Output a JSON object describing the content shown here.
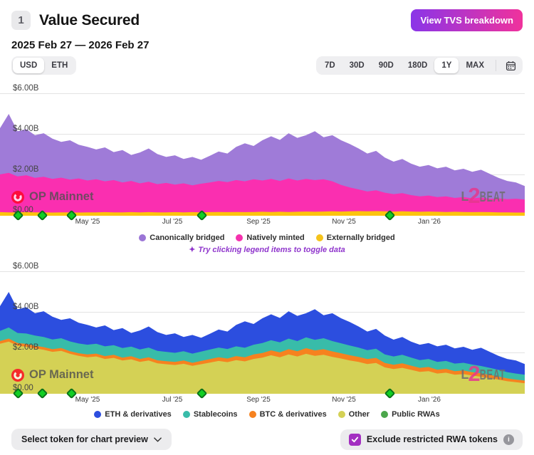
{
  "header": {
    "badge": "1",
    "title": "Value Secured",
    "breakdown_button": "View TVS breakdown"
  },
  "date_range": "2025 Feb 27 — 2026 Feb 27",
  "unit_toggle": {
    "options": [
      "USD",
      "ETH"
    ],
    "selected": "USD"
  },
  "range_selector": {
    "options": [
      "7D",
      "30D",
      "90D",
      "180D",
      "1Y",
      "MAX"
    ],
    "selected": "1Y"
  },
  "watermarks": {
    "chain": "OP Mainnet",
    "brand_l": "L",
    "brand_2": "2",
    "brand_beat": "BEAT"
  },
  "hint": {
    "icon": "✦",
    "text": "Try clicking legend items to toggle data"
  },
  "footer": {
    "token_select_label": "Select token for chart preview",
    "exclude_checkbox_label": "Exclude restricted RWA tokens",
    "exclude_checked": true
  },
  "colors": {
    "accent_gradient_start": "#8A35E8",
    "accent_gradient_end": "#F0329C",
    "checkbox_purple": "#A32FC1",
    "gridline": "#E3E3E3",
    "milestone_fill": "#11CE24",
    "milestone_border": "#0B7418",
    "op_red": "#FF0420",
    "l2beat_pink": "#E6388F"
  },
  "chart_data": [
    {
      "type": "area",
      "stacked": true,
      "name": "value-secured-by-bridge-type",
      "unit": "USD",
      "ylim": [
        0,
        6
      ],
      "x_range": [
        "2025 Feb 27",
        "2026 Feb 27"
      ],
      "y_ticks": [
        {
          "label": "$6.00B",
          "value": 6
        },
        {
          "label": "$4.00B",
          "value": 4
        },
        {
          "label": "$2.00B",
          "value": 2
        },
        {
          "label": "$0.00",
          "value": 0
        }
      ],
      "x_ticks": [
        {
          "label": "May '25",
          "f": 0.167
        },
        {
          "label": "Jul '25",
          "f": 0.329
        },
        {
          "label": "Sep '25",
          "f": 0.493
        },
        {
          "label": "Nov '25",
          "f": 0.655
        },
        {
          "label": "Jan '26",
          "f": 0.818
        }
      ],
      "milestones_f": [
        0.034,
        0.081,
        0.136,
        0.384,
        0.743
      ],
      "layers": [
        {
          "name": "Canonically bridged",
          "color": "#9F7BD8",
          "tops": [
            4.3,
            5.0,
            4.15,
            4.25,
            3.95,
            4.05,
            3.78,
            3.62,
            3.7,
            3.48,
            3.38,
            3.25,
            3.35,
            3.12,
            3.22,
            2.98,
            3.1,
            3.3,
            3.02,
            2.88,
            2.96,
            2.78,
            2.88,
            2.74,
            2.94,
            3.15,
            3.05,
            3.38,
            3.55,
            3.42,
            3.7,
            3.9,
            3.72,
            4.05,
            3.82,
            3.95,
            4.15,
            3.85,
            3.95,
            3.7,
            3.52,
            3.3,
            3.05,
            3.18,
            2.85,
            2.65,
            2.78,
            2.55,
            2.4,
            2.48,
            2.32,
            2.4,
            2.22,
            2.3,
            2.15,
            2.25,
            2.05,
            1.85,
            1.7,
            1.62,
            1.45
          ]
        },
        {
          "name": "Natively minted",
          "color": "#FA2FB0",
          "tops": [
            2.02,
            2.1,
            1.92,
            1.98,
            1.85,
            1.9,
            1.8,
            1.86,
            1.76,
            1.82,
            1.72,
            1.78,
            1.68,
            1.74,
            1.62,
            1.7,
            1.58,
            1.66,
            1.54,
            1.6,
            1.52,
            1.58,
            1.48,
            1.56,
            1.62,
            1.7,
            1.64,
            1.74,
            1.68,
            1.78,
            1.72,
            1.8,
            1.7,
            1.82,
            1.72,
            1.8,
            1.74,
            1.78,
            1.68,
            1.5,
            1.38,
            1.28,
            1.18,
            1.24,
            1.12,
            1.05,
            1.1,
            1.0,
            0.94,
            0.98,
            0.9,
            0.94,
            0.86,
            0.9,
            0.84,
            0.88,
            0.82,
            0.84,
            0.8,
            0.82,
            0.78
          ]
        },
        {
          "name": "Externally bridged",
          "color": "#FCC40E",
          "tops": [
            0.16,
            0.15,
            0.15,
            0.16,
            0.15,
            0.15,
            0.14,
            0.15,
            0.15,
            0.14,
            0.15,
            0.15,
            0.16,
            0.15,
            0.15,
            0.16,
            0.15,
            0.16,
            0.15,
            0.15,
            0.16,
            0.15,
            0.16,
            0.15,
            0.16,
            0.17,
            0.16,
            0.17,
            0.16,
            0.17,
            0.18,
            0.17,
            0.18,
            0.17,
            0.18,
            0.19,
            0.18,
            0.19,
            0.2,
            0.19,
            0.2,
            0.21,
            0.2,
            0.21,
            0.2,
            0.19,
            0.2,
            0.19,
            0.18,
            0.19,
            0.18,
            0.17,
            0.18,
            0.17,
            0.16,
            0.17,
            0.16,
            0.15,
            0.15,
            0.14,
            0.14
          ]
        }
      ],
      "legend": [
        {
          "label": "Canonically bridged",
          "color": "#9B75D6"
        },
        {
          "label": "Natively minted",
          "color": "#F531AE"
        },
        {
          "label": "Externally bridged",
          "color": "#F5C31B"
        }
      ]
    },
    {
      "type": "area",
      "stacked": true,
      "name": "value-secured-by-token-category",
      "unit": "USD",
      "ylim": [
        0,
        6
      ],
      "x_range": [
        "2025 Feb 27",
        "2026 Feb 27"
      ],
      "y_ticks": [
        {
          "label": "$6.00B",
          "value": 6
        },
        {
          "label": "$4.00B",
          "value": 4
        },
        {
          "label": "$2.00B",
          "value": 2
        },
        {
          "label": "$0.00",
          "value": 0
        }
      ],
      "x_ticks": [
        {
          "label": "May '25",
          "f": 0.167
        },
        {
          "label": "Jul '25",
          "f": 0.329
        },
        {
          "label": "Sep '25",
          "f": 0.493
        },
        {
          "label": "Nov '25",
          "f": 0.655
        },
        {
          "label": "Jan '26",
          "f": 0.818
        }
      ],
      "milestones_f": [
        0.034,
        0.081,
        0.136,
        0.384,
        0.743
      ],
      "layers": [
        {
          "name": "ETH & derivatives",
          "color": "#2C4EDF",
          "tops": [
            4.3,
            5.0,
            4.15,
            4.25,
            3.95,
            4.05,
            3.78,
            3.62,
            3.7,
            3.48,
            3.38,
            3.25,
            3.35,
            3.12,
            3.22,
            2.98,
            3.1,
            3.3,
            3.02,
            2.88,
            2.96,
            2.78,
            2.88,
            2.74,
            2.94,
            3.15,
            3.05,
            3.38,
            3.55,
            3.42,
            3.7,
            3.9,
            3.72,
            4.05,
            3.82,
            3.95,
            4.15,
            3.85,
            3.95,
            3.7,
            3.52,
            3.3,
            3.05,
            3.18,
            2.85,
            2.65,
            2.78,
            2.55,
            2.4,
            2.48,
            2.32,
            2.4,
            2.22,
            2.3,
            2.15,
            2.25,
            2.05,
            1.85,
            1.7,
            1.62,
            1.45
          ]
        },
        {
          "name": "Stablecoins",
          "color": "#38BCA9",
          "tops": [
            3.08,
            3.25,
            2.98,
            2.95,
            2.85,
            2.78,
            2.66,
            2.72,
            2.56,
            2.46,
            2.4,
            2.45,
            2.32,
            2.38,
            2.24,
            2.31,
            2.17,
            2.26,
            2.1,
            2.05,
            2.0,
            2.08,
            1.96,
            2.06,
            2.16,
            2.26,
            2.19,
            2.32,
            2.25,
            2.4,
            2.48,
            2.62,
            2.52,
            2.7,
            2.58,
            2.76,
            2.64,
            2.72,
            2.58,
            2.47,
            2.36,
            2.26,
            2.13,
            2.2,
            1.92,
            1.82,
            1.9,
            1.77,
            1.64,
            1.7,
            1.55,
            1.6,
            1.47,
            1.51,
            1.42,
            1.35,
            1.26,
            1.16,
            1.05,
            0.98,
            0.92
          ]
        },
        {
          "name": "BTC & derivatives",
          "color": "#F6821F",
          "tops": [
            2.58,
            2.7,
            2.48,
            2.44,
            2.35,
            2.28,
            2.18,
            2.24,
            2.08,
            1.98,
            1.92,
            1.96,
            1.84,
            1.9,
            1.76,
            1.83,
            1.7,
            1.78,
            1.63,
            1.59,
            1.55,
            1.62,
            1.51,
            1.6,
            1.69,
            1.78,
            1.72,
            1.84,
            1.78,
            1.92,
            1.99,
            2.12,
            2.02,
            2.18,
            2.08,
            2.23,
            2.12,
            2.18,
            2.07,
            1.98,
            1.88,
            1.8,
            1.69,
            1.75,
            1.5,
            1.41,
            1.48,
            1.37,
            1.26,
            1.3,
            1.17,
            1.21,
            1.1,
            1.13,
            1.05,
            0.99,
            0.91,
            0.83,
            0.74,
            0.68,
            0.63
          ]
        },
        {
          "name": "Other",
          "color": "#D4D155",
          "tops": [
            2.45,
            2.55,
            2.35,
            2.3,
            2.22,
            2.15,
            2.05,
            2.1,
            1.95,
            1.85,
            1.78,
            1.82,
            1.7,
            1.75,
            1.62,
            1.68,
            1.55,
            1.62,
            1.48,
            1.44,
            1.4,
            1.46,
            1.36,
            1.44,
            1.52,
            1.6,
            1.54,
            1.64,
            1.58,
            1.7,
            1.76,
            1.88,
            1.78,
            1.92,
            1.82,
            1.95,
            1.85,
            1.9,
            1.8,
            1.72,
            1.62,
            1.55,
            1.45,
            1.5,
            1.28,
            1.2,
            1.26,
            1.16,
            1.06,
            1.1,
            0.98,
            1.02,
            0.92,
            0.95,
            0.88,
            0.82,
            0.75,
            0.68,
            0.6,
            0.55,
            0.5
          ]
        }
      ],
      "legend": [
        {
          "label": "ETH & derivatives",
          "color": "#2C4EDF"
        },
        {
          "label": "Stablecoins",
          "color": "#38BCA9"
        },
        {
          "label": "BTC & derivatives",
          "color": "#F6821F"
        },
        {
          "label": "Other",
          "color": "#D4D155"
        },
        {
          "label": "Public RWAs",
          "color": "#4BA64B"
        }
      ]
    }
  ]
}
